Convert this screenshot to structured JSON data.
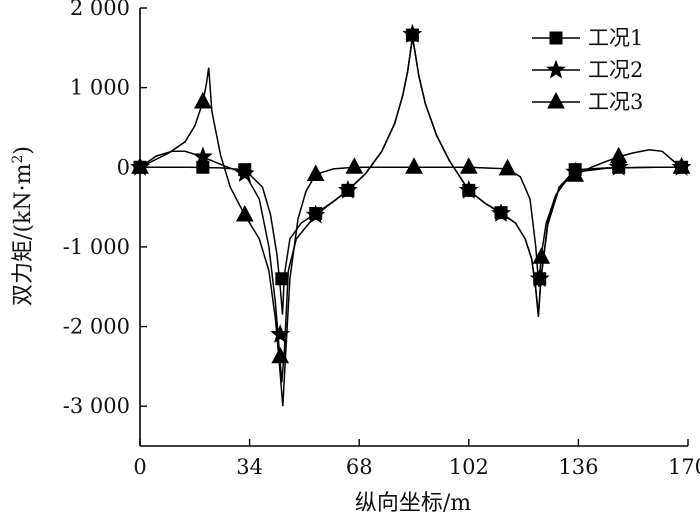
{
  "chart_data": {
    "type": "line",
    "xlabel": "纵向坐标/m",
    "ylabel": "双力矩/(kN·m",
    "ylabel_sup": "2",
    "ylabel_close": ")",
    "xlim": [
      0,
      170
    ],
    "ylim": [
      -3500,
      2000
    ],
    "xticks": [
      {
        "value": 0,
        "label": "0"
      },
      {
        "value": 34,
        "label": "34"
      },
      {
        "value": 68,
        "label": "68"
      },
      {
        "value": 102,
        "label": "102"
      },
      {
        "value": 136,
        "label": "136"
      },
      {
        "value": 170,
        "label": "170"
      }
    ],
    "yticks": [
      {
        "value": 2000,
        "label": "2 000"
      },
      {
        "value": 1000,
        "label": "1 000"
      },
      {
        "value": 0,
        "label": "0"
      },
      {
        "value": -1000,
        "label": "-1 000"
      },
      {
        "value": -2000,
        "label": "-2 000"
      },
      {
        "value": -3000,
        "label": "-3 000"
      }
    ],
    "legend_position": "top-right",
    "series": [
      {
        "name": "工况1",
        "marker": "square",
        "markers": [
          {
            "x": 0,
            "y": 0
          },
          {
            "x": 19.5,
            "y": 0
          },
          {
            "x": 32.5,
            "y": -30
          },
          {
            "x": 44,
            "y": -1400
          },
          {
            "x": 54.5,
            "y": -580
          },
          {
            "x": 64.5,
            "y": -290
          },
          {
            "x": 84.5,
            "y": 1660
          },
          {
            "x": 102,
            "y": -290
          },
          {
            "x": 112,
            "y": -570
          },
          {
            "x": 124,
            "y": -1400
          },
          {
            "x": 135,
            "y": -30
          },
          {
            "x": 148.5,
            "y": 0
          },
          {
            "x": 168,
            "y": 0
          }
        ],
        "line": [
          [
            0,
            0
          ],
          [
            15,
            0
          ],
          [
            25,
            -8
          ],
          [
            32.5,
            -30
          ],
          [
            38,
            -250
          ],
          [
            40.5,
            -600
          ],
          [
            42.5,
            -1100
          ],
          [
            43.5,
            -1500
          ],
          [
            44.2,
            -1850
          ],
          [
            44.8,
            -1350
          ],
          [
            46.5,
            -900
          ],
          [
            50,
            -700
          ],
          [
            54.5,
            -580
          ],
          [
            60,
            -430
          ],
          [
            64.5,
            -290
          ],
          [
            70,
            -80
          ],
          [
            75,
            200
          ],
          [
            79,
            550
          ],
          [
            81.5,
            900
          ],
          [
            83,
            1200
          ],
          [
            84,
            1480
          ],
          [
            84.5,
            1620
          ],
          [
            85.2,
            1480
          ],
          [
            86.5,
            1150
          ],
          [
            88.5,
            800
          ],
          [
            92,
            400
          ],
          [
            96,
            80
          ],
          [
            102,
            -290
          ],
          [
            107,
            -450
          ],
          [
            112,
            -570
          ],
          [
            116.5,
            -700
          ],
          [
            119.5,
            -900
          ],
          [
            121.5,
            -1150
          ],
          [
            122.7,
            -1500
          ],
          [
            123.6,
            -1850
          ],
          [
            124.4,
            -1380
          ],
          [
            126.5,
            -700
          ],
          [
            130,
            -250
          ],
          [
            135,
            -30
          ],
          [
            145,
            -8
          ],
          [
            160,
            0
          ],
          [
            168,
            0
          ]
        ]
      },
      {
        "name": "工况2",
        "marker": "star",
        "markers": [
          {
            "x": 0,
            "y": 0
          },
          {
            "x": 19.5,
            "y": 130
          },
          {
            "x": 32.5,
            "y": -80
          },
          {
            "x": 43.5,
            "y": -2100
          },
          {
            "x": 54.5,
            "y": -600
          },
          {
            "x": 64.5,
            "y": -290
          },
          {
            "x": 84.5,
            "y": 1670
          },
          {
            "x": 102,
            "y": -290
          },
          {
            "x": 112,
            "y": -580
          },
          {
            "x": 124,
            "y": -1400
          },
          {
            "x": 135,
            "y": -60
          },
          {
            "x": 148.5,
            "y": 0
          },
          {
            "x": 168,
            "y": 0
          }
        ],
        "line": [
          [
            0,
            0
          ],
          [
            5,
            140
          ],
          [
            10,
            200
          ],
          [
            14,
            200
          ],
          [
            19.5,
            130
          ],
          [
            26,
            20
          ],
          [
            32.5,
            -80
          ],
          [
            37,
            -400
          ],
          [
            40,
            -1000
          ],
          [
            42,
            -1700
          ],
          [
            43.2,
            -2300
          ],
          [
            44,
            -2700
          ],
          [
            44.8,
            -2300
          ],
          [
            46,
            -1300
          ],
          [
            48.5,
            -900
          ],
          [
            54.5,
            -600
          ],
          [
            60,
            -430
          ],
          [
            64.5,
            -290
          ],
          [
            70,
            -80
          ],
          [
            75,
            200
          ],
          [
            79,
            550
          ],
          [
            81.5,
            900
          ],
          [
            83,
            1200
          ],
          [
            84,
            1480
          ],
          [
            84.5,
            1640
          ],
          [
            85.2,
            1480
          ],
          [
            86.5,
            1150
          ],
          [
            88.5,
            800
          ],
          [
            92,
            400
          ],
          [
            96,
            80
          ],
          [
            102,
            -290
          ],
          [
            107,
            -450
          ],
          [
            112,
            -580
          ],
          [
            116.5,
            -700
          ],
          [
            119.5,
            -900
          ],
          [
            121.5,
            -1150
          ],
          [
            122.7,
            -1500
          ],
          [
            123.6,
            -1880
          ],
          [
            124.4,
            -1400
          ],
          [
            126.5,
            -720
          ],
          [
            130,
            -260
          ],
          [
            135,
            -60
          ],
          [
            145,
            -10
          ],
          [
            160,
            0
          ],
          [
            168,
            0
          ]
        ]
      },
      {
        "name": "工况3",
        "marker": "triangle",
        "markers": [
          {
            "x": 0,
            "y": 0
          },
          {
            "x": 19.5,
            "y": 820
          },
          {
            "x": 32.5,
            "y": -600
          },
          {
            "x": 43.5,
            "y": -2380
          },
          {
            "x": 54.5,
            "y": -90
          },
          {
            "x": 66.5,
            "y": 0
          },
          {
            "x": 85,
            "y": 0
          },
          {
            "x": 102,
            "y": 0
          },
          {
            "x": 114,
            "y": -20
          },
          {
            "x": 124.5,
            "y": -1130
          },
          {
            "x": 135,
            "y": -100
          },
          {
            "x": 148.5,
            "y": 130
          },
          {
            "x": 168,
            "y": 0
          }
        ],
        "line": [
          [
            0,
            0
          ],
          [
            4,
            80
          ],
          [
            9,
            180
          ],
          [
            14,
            320
          ],
          [
            17,
            520
          ],
          [
            19.5,
            820
          ],
          [
            20.6,
            1050
          ],
          [
            21.3,
            1250
          ],
          [
            22.3,
            700
          ],
          [
            25,
            150
          ],
          [
            28,
            -250
          ],
          [
            32.5,
            -600
          ],
          [
            37,
            -900
          ],
          [
            40,
            -1300
          ],
          [
            42,
            -1900
          ],
          [
            43.3,
            -2500
          ],
          [
            44.3,
            -3000
          ],
          [
            45.1,
            -2400
          ],
          [
            46.5,
            -1400
          ],
          [
            49,
            -650
          ],
          [
            51.5,
            -300
          ],
          [
            54.5,
            -90
          ],
          [
            60,
            -20
          ],
          [
            66.5,
            0
          ],
          [
            85,
            0
          ],
          [
            102,
            0
          ],
          [
            114,
            -20
          ],
          [
            118,
            -120
          ],
          [
            121,
            -400
          ],
          [
            122.8,
            -1000
          ],
          [
            123.7,
            -1500
          ],
          [
            124.5,
            -1100
          ],
          [
            126,
            -700
          ],
          [
            129,
            -350
          ],
          [
            132,
            -180
          ],
          [
            135,
            -100
          ],
          [
            140,
            0
          ],
          [
            145,
            80
          ],
          [
            148.5,
            130
          ],
          [
            153,
            180
          ],
          [
            158,
            220
          ],
          [
            162,
            200
          ],
          [
            166,
            60
          ],
          [
            168,
            0
          ]
        ]
      }
    ]
  }
}
